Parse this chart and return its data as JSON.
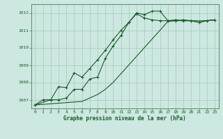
{
  "title": "Graphe pression niveau de la mer (hPa)",
  "bg_color": "#cce8e0",
  "grid_color": "#a8c8c0",
  "line_color": "#1a5c2a",
  "xlim": [
    -0.5,
    23.5
  ],
  "ylim": [
    1006.5,
    1012.5
  ],
  "yticks": [
    1007,
    1008,
    1009,
    1010,
    1011,
    1012
  ],
  "xticks": [
    0,
    1,
    2,
    3,
    4,
    5,
    6,
    7,
    8,
    9,
    10,
    11,
    12,
    13,
    14,
    15,
    16,
    17,
    18,
    19,
    20,
    21,
    22,
    23
  ],
  "series1_x": [
    0,
    1,
    2,
    3,
    4,
    5,
    6,
    7,
    8,
    9,
    10,
    11,
    12,
    13,
    14,
    15,
    16,
    17,
    18,
    19,
    20,
    21,
    22,
    23
  ],
  "series1_y": [
    1006.7,
    1007.0,
    1007.0,
    1007.0,
    1007.1,
    1007.6,
    1007.6,
    1008.2,
    1008.3,
    1009.4,
    1010.1,
    1010.7,
    1011.45,
    1012.0,
    1011.9,
    1012.1,
    1012.1,
    1011.55,
    1011.55,
    1011.6,
    1011.55,
    1011.45,
    1011.55,
    1011.6
  ],
  "series2_x": [
    0,
    2,
    3,
    4,
    5,
    6,
    7,
    8,
    9,
    10,
    11,
    12,
    13,
    14,
    15,
    16,
    17,
    18,
    19,
    20,
    21,
    22,
    23
  ],
  "series2_y": [
    1006.7,
    1007.0,
    1007.75,
    1007.7,
    1008.55,
    1008.3,
    1008.8,
    1009.3,
    1009.85,
    1010.45,
    1011.0,
    1011.45,
    1011.95,
    1011.7,
    1011.6,
    1011.55,
    1011.55,
    1011.6,
    1011.55,
    1011.55,
    1011.45,
    1011.55,
    1011.6
  ],
  "series3_x": [
    0,
    6,
    7,
    8,
    9,
    10,
    11,
    12,
    13,
    14,
    15,
    16,
    17,
    18,
    19,
    20,
    21,
    22,
    23
  ],
  "series3_y": [
    1006.7,
    1006.9,
    1007.1,
    1007.3,
    1007.6,
    1008.0,
    1008.5,
    1009.0,
    1009.5,
    1010.0,
    1010.5,
    1011.0,
    1011.5,
    1011.55,
    1011.55,
    1011.55,
    1011.55,
    1011.55,
    1011.6
  ]
}
